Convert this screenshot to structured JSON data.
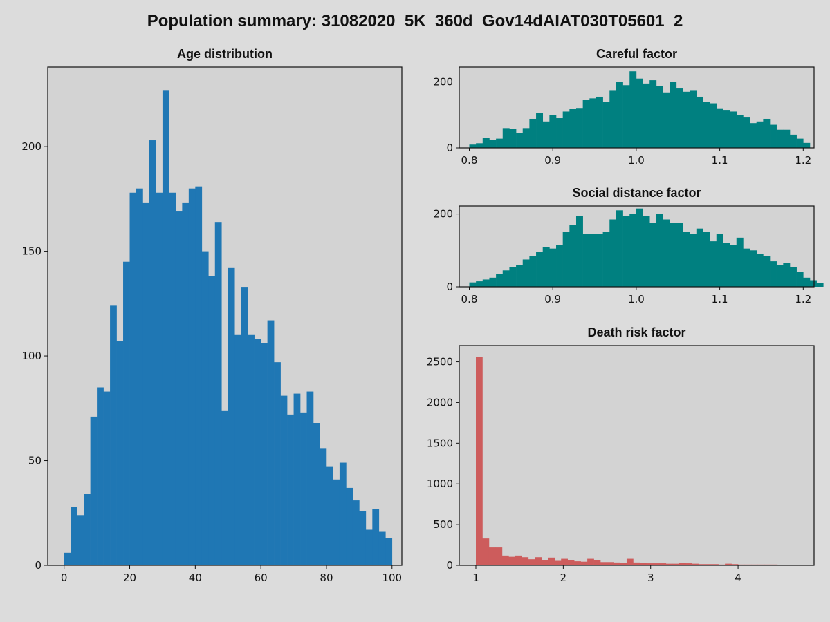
{
  "suptitle": "Population summary: 31082020_5K_360d_Gov14dAIAT030T05601_2",
  "chart_data": [
    {
      "type": "bar",
      "title": "Age distribution",
      "xlabel": "",
      "ylabel": "",
      "color": "#1f77b4",
      "bin_start": 0,
      "bin_width": 2,
      "values": [
        6,
        28,
        24,
        34,
        71,
        85,
        83,
        124,
        107,
        145,
        178,
        180,
        173,
        203,
        178,
        227,
        178,
        169,
        173,
        180,
        181,
        150,
        138,
        164,
        74,
        142,
        110,
        133,
        110,
        108,
        106,
        117,
        97,
        81,
        72,
        82,
        73,
        83,
        68,
        56,
        47,
        41,
        49,
        37,
        31,
        26,
        17,
        27,
        16,
        13
      ],
      "xlim": [
        -5,
        103
      ],
      "ylim": [
        0,
        238
      ],
      "xticks": [
        0,
        20,
        40,
        60,
        80,
        100
      ],
      "yticks": [
        0,
        50,
        100,
        150,
        200
      ]
    },
    {
      "type": "bar",
      "title": "Careful factor",
      "xlabel": "",
      "ylabel": "",
      "color": "#008080",
      "bin_start": 0.8,
      "bin_width": 0.008,
      "values": [
        10,
        14,
        30,
        25,
        28,
        60,
        58,
        45,
        60,
        88,
        105,
        80,
        100,
        90,
        110,
        118,
        121,
        145,
        150,
        155,
        140,
        175,
        200,
        190,
        232,
        210,
        195,
        205,
        188,
        168,
        200,
        180,
        170,
        175,
        155,
        140,
        135,
        120,
        115,
        110,
        100,
        92,
        75,
        80,
        88,
        70,
        55,
        55,
        40,
        28,
        15
      ],
      "xlim": [
        0.788,
        1.213
      ],
      "ylim": [
        0,
        245
      ],
      "xticks": [
        0.8,
        0.9,
        1.0,
        1.1,
        1.2
      ],
      "yticks": [
        0,
        200
      ]
    },
    {
      "type": "bar",
      "title": "Social distance factor",
      "xlabel": "",
      "ylabel": "",
      "color": "#008080",
      "bin_start": 0.8,
      "bin_width": 0.008,
      "values": [
        12,
        15,
        20,
        25,
        35,
        45,
        55,
        60,
        75,
        85,
        95,
        110,
        105,
        115,
        150,
        170,
        195,
        145,
        145,
        145,
        150,
        185,
        210,
        195,
        200,
        215,
        195,
        175,
        200,
        185,
        175,
        175,
        150,
        145,
        160,
        150,
        125,
        145,
        120,
        115,
        135,
        105,
        100,
        90,
        85,
        70,
        60,
        65,
        55,
        40,
        25,
        18,
        10
      ],
      "xlim": [
        0.788,
        1.213
      ],
      "ylim": [
        0,
        222
      ],
      "xticks": [
        0.8,
        0.9,
        1.0,
        1.1,
        1.2
      ],
      "yticks": [
        0,
        200
      ]
    },
    {
      "type": "bar",
      "title": "Death risk factor",
      "xlabel": "",
      "ylabel": "",
      "color": "#cd5c5c",
      "bin_start": 1.0,
      "bin_width": 0.075,
      "values": [
        2560,
        330,
        220,
        220,
        120,
        105,
        120,
        100,
        75,
        100,
        65,
        95,
        55,
        80,
        60,
        50,
        45,
        80,
        60,
        40,
        40,
        35,
        30,
        80,
        35,
        30,
        25,
        25,
        25,
        20,
        20,
        30,
        25,
        20,
        15,
        15,
        15,
        10,
        20,
        15,
        10,
        10,
        10,
        10,
        10,
        10,
        5,
        5,
        5,
        3
      ],
      "xlim": [
        0.81,
        4.87
      ],
      "ylim": [
        0,
        2700
      ],
      "xticks": [
        1,
        2,
        3,
        4
      ],
      "yticks": [
        0,
        500,
        1000,
        1500,
        2000,
        2500
      ]
    }
  ]
}
